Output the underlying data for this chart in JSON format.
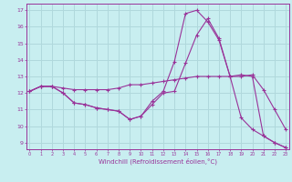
{
  "xlabel": "Windchill (Refroidissement éolien,°C)",
  "bg_color": "#c8eef0",
  "grid_color": "#b0d8dc",
  "line_color": "#993399",
  "x_ticks": [
    0,
    1,
    2,
    3,
    4,
    5,
    6,
    7,
    8,
    9,
    10,
    11,
    12,
    13,
    14,
    15,
    16,
    17,
    18,
    19,
    20,
    21,
    22,
    23
  ],
  "y_ticks": [
    9,
    10,
    11,
    12,
    13,
    14,
    15,
    16,
    17
  ],
  "xlim": [
    -0.3,
    23.3
  ],
  "ylim": [
    8.6,
    17.4
  ],
  "line1_x": [
    0,
    1,
    2,
    3,
    4,
    5,
    6,
    7,
    8,
    9,
    10,
    11,
    12,
    13,
    14,
    15,
    16,
    17,
    18,
    19,
    20,
    21,
    22,
    23
  ],
  "line1_y": [
    12.1,
    12.4,
    12.4,
    12.0,
    11.4,
    11.3,
    11.1,
    11.0,
    10.9,
    10.4,
    10.6,
    11.5,
    12.1,
    13.9,
    16.8,
    17.0,
    16.3,
    15.2,
    13.0,
    10.5,
    9.8,
    9.4,
    9.0,
    8.7
  ],
  "line2_x": [
    0,
    1,
    2,
    3,
    4,
    5,
    6,
    7,
    8,
    9,
    10,
    11,
    12,
    13,
    14,
    15,
    16,
    17,
    18,
    19,
    20,
    21,
    22,
    23
  ],
  "line2_y": [
    12.1,
    12.4,
    12.4,
    12.3,
    12.2,
    12.2,
    12.2,
    12.2,
    12.3,
    12.5,
    12.5,
    12.6,
    12.7,
    12.8,
    12.9,
    13.0,
    13.0,
    13.0,
    13.0,
    13.0,
    13.1,
    12.2,
    11.0,
    9.8
  ],
  "line3_x": [
    0,
    1,
    2,
    3,
    4,
    5,
    6,
    7,
    8,
    9,
    10,
    11,
    12,
    13,
    14,
    15,
    16,
    17,
    18,
    19,
    20,
    21,
    22,
    23
  ],
  "line3_y": [
    12.1,
    12.4,
    12.4,
    12.0,
    11.4,
    11.3,
    11.1,
    11.0,
    10.9,
    10.4,
    10.6,
    11.3,
    12.0,
    12.1,
    13.8,
    15.5,
    16.5,
    15.3,
    13.0,
    13.1,
    13.0,
    9.4,
    9.0,
    8.7
  ]
}
